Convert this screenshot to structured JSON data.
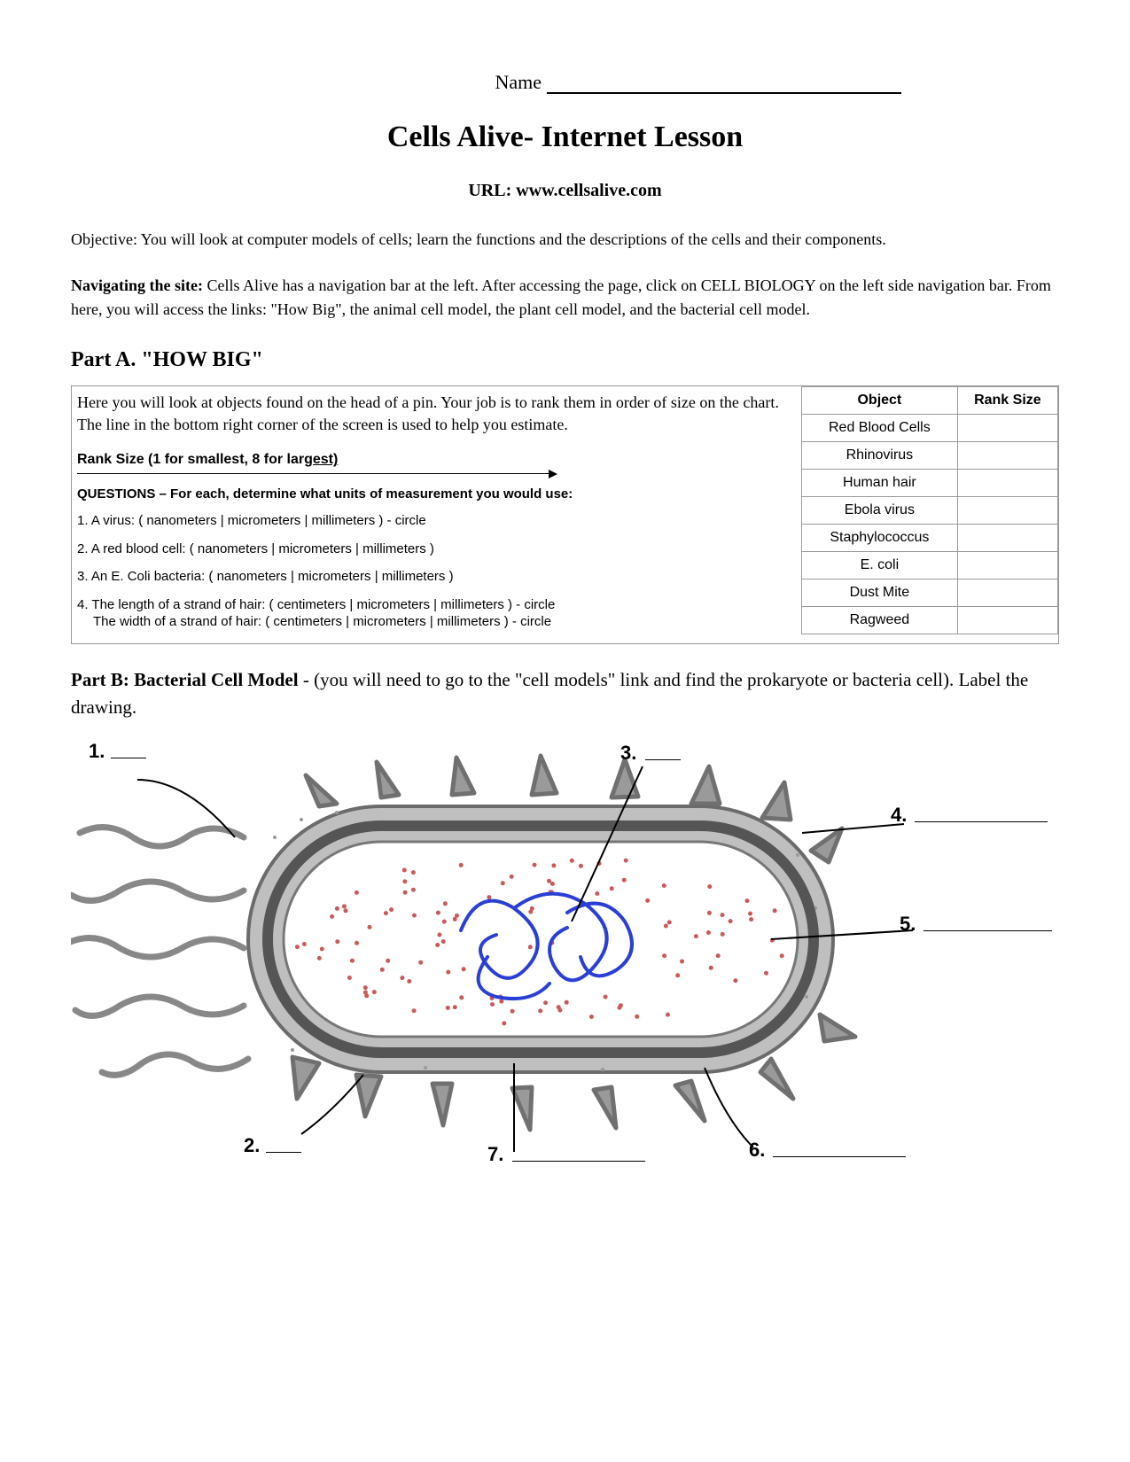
{
  "header": {
    "name_label": "Name",
    "title": "Cells Alive- Internet Lesson",
    "url_label": "URL: www.cellsalive.com"
  },
  "objective": "Objective: You will look at computer models of cells; learn the functions and the descriptions of the cells and their components.",
  "navigating_label": "Navigating the site:",
  "navigating_text": "  Cells Alive has a navigation bar at the left. After accessing the page, click on CELL BIOLOGY on the left side navigation bar. From here, you will access the links: \"How Big\", the animal cell model, the plant cell model, and the bacterial cell model.",
  "partA": {
    "heading": "Part A. \"HOW BIG\"",
    "intro": "Here you will look at objects found on the head of a pin. Your job is to rank them in order of size on the chart.  The line in the bottom right corner of the screen is used to help you estimate.",
    "rank_label_pre": "Rank Size (1 for smallest, 8 for lar",
    "rank_label_u": "gest)",
    "questions_head": "QUESTIONS – For each, determine what units of measurement you would use:",
    "q1": "1.  A virus: ( nanometers | micrometers | millimeters )  - circle",
    "q2": "2.  A red blood cell:  ( nanometers | micrometers | millimeters )",
    "q3": "3. An E. Coli bacteria:  ( nanometers | micrometers | millimeters )",
    "q4a": "4. The length of a strand of hair: ( centimeters | micrometers | millimeters )  - circle",
    "q4b": "The width of a strand of hair: ( centimeters | micrometers | millimeters )  - circle",
    "table": {
      "col1": "Object",
      "col2": "Rank Size",
      "rows": [
        "Red Blood Cells",
        "Rhinovirus",
        "Human hair",
        "Ebola virus",
        "Staphylococcus",
        "E. coli",
        "Dust Mite",
        "Ragweed"
      ]
    }
  },
  "partB": {
    "heading": "Part B: Bacterial Cell Model",
    "text": " - (you will need to go to the \"cell models\" link and find the prokaryote or bacteria cell).  Label the drawing.",
    "labels": [
      "1.",
      "2.",
      "3.",
      "4.",
      "5.",
      "6.",
      "7."
    ]
  },
  "diagram": {
    "colors": {
      "outer_stroke": "#6b6b6b",
      "membrane_fill": "#bfbfbf",
      "inner_fill": "#ffffff",
      "dots": "#c85a5a",
      "dna": "#2a3fd6",
      "flagella": "#888888",
      "pili": "#707070"
    }
  }
}
